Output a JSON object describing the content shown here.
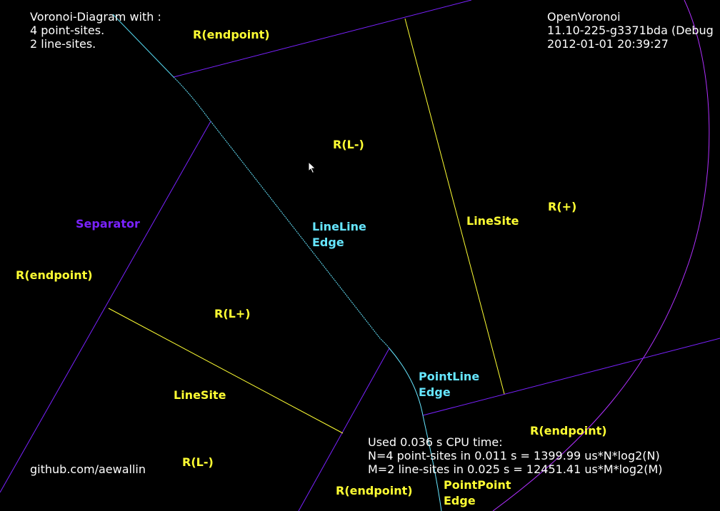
{
  "header": {
    "title": "Voronoi-Diagram with :",
    "point_sites": "4 point-sites.",
    "line_sites": "2 line-sites."
  },
  "version": {
    "name": "OpenVoronoi",
    "build": "11.10-225-g3371bda (Debug",
    "date": "2012-01-01 20:39:27"
  },
  "footer": {
    "github": "github.com/aewallin",
    "cpu_time": "Used 0.036 s CPU time:",
    "n_stats": "N=4 point-sites in 0.011 s = 1399.99 us*N*log2(N)",
    "m_stats": "M=2 line-sites in 0.025 s = 12451.41 us*M*log2(M)"
  },
  "labels": {
    "r_endpoint_top": "R(endpoint)",
    "r_l_minus_top": "R(L-)",
    "r_plus": "R(+)",
    "separator": "Separator",
    "r_endpoint_left": "R(endpoint)",
    "lineline_1": "LineLine",
    "lineline_2": "Edge",
    "linesite_right": "LineSite",
    "r_l_plus": "R(L+)",
    "pointline_1": "PointLine",
    "pointline_2": "Edge",
    "linesite_left": "LineSite",
    "r_endpoint_right": "R(endpoint)",
    "r_l_minus_bottom": "R(L-)",
    "r_endpoint_bottom": "R(endpoint)",
    "pointpoint_1": "PointPoint",
    "pointpoint_2": "Edge"
  },
  "colors": {
    "background": "#000000",
    "line_site": "#ffff33",
    "separator": "#7a22ff",
    "lineline_edge": "#66e6ff",
    "pointpoint_edge": "#66e6ff",
    "pointline_edge": "#66e6ff",
    "circle": "#b030ff"
  }
}
